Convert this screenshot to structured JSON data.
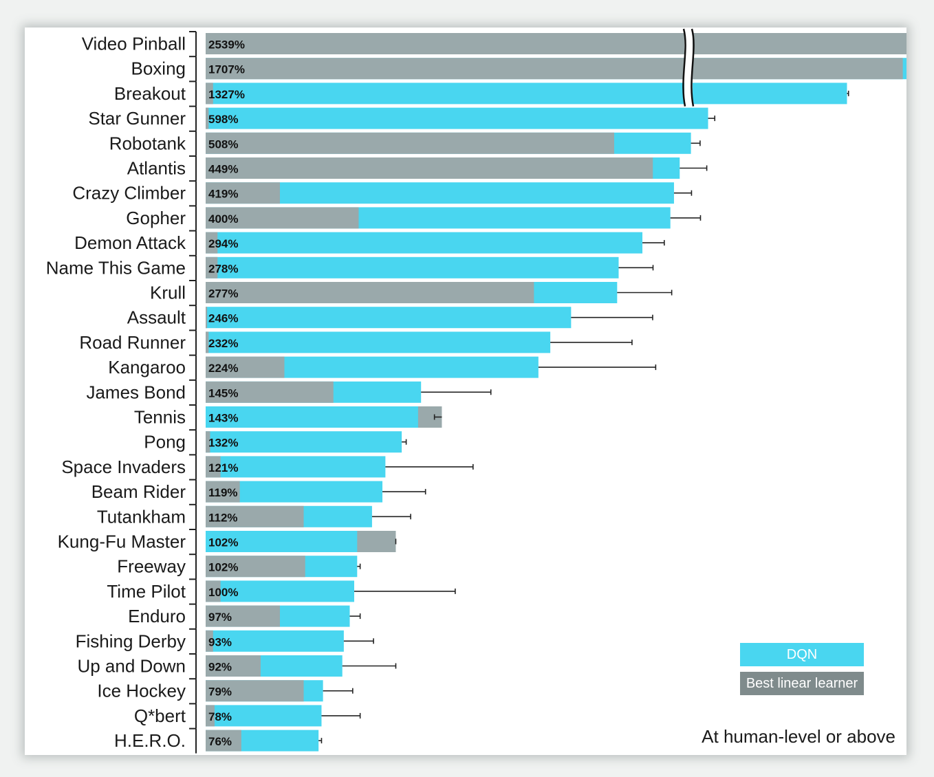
{
  "chart_data": {
    "type": "bar",
    "orientation": "horizontal",
    "title": "",
    "caption": "At human-level or above",
    "axis_break": "between ~1000% and top values (Video Pinball, Boxing, Breakout bars are broken)",
    "series": [
      {
        "name": "DQN",
        "color": "#49d6f0"
      },
      {
        "name": "Best linear learner",
        "color": "#9aa9ab"
      }
    ],
    "categories": [
      {
        "name": "Video Pinball",
        "dqn_label": "2539%",
        "dqn": 2539,
        "linear": 1650,
        "err": 2860
      },
      {
        "name": "Boxing",
        "dqn_label": "1707%",
        "dqn": 1707,
        "linear": 1620,
        "err": 1720
      },
      {
        "name": "Breakout",
        "dqn_label": "1327%",
        "dqn": 1327,
        "linear": 5,
        "err": 1335
      },
      {
        "name": "Star Gunner",
        "dqn_label": "598%",
        "dqn": 598,
        "linear": 2,
        "err": 633
      },
      {
        "name": "Robotank",
        "dqn_label": "508%",
        "dqn": 508,
        "linear": 275,
        "err": 556
      },
      {
        "name": "Atlantis",
        "dqn_label": "449%",
        "dqn": 449,
        "linear": 308,
        "err": 591
      },
      {
        "name": "Crazy Climber",
        "dqn_label": "419%",
        "dqn": 419,
        "linear": 50,
        "err": 511
      },
      {
        "name": "Gopher",
        "dqn_label": "400%",
        "dqn": 400,
        "linear": 103,
        "err": 558
      },
      {
        "name": "Demon Attack",
        "dqn_label": "294%",
        "dqn": 294,
        "linear": 8,
        "err": 368
      },
      {
        "name": "Name This Game",
        "dqn_label": "278%",
        "dqn": 278,
        "linear": 8,
        "err": 309
      },
      {
        "name": "Krull",
        "dqn_label": "277%",
        "dqn": 277,
        "linear": 221,
        "err": 407
      },
      {
        "name": "Assault",
        "dqn_label": "246%",
        "dqn": 246,
        "linear": 1,
        "err": 307
      },
      {
        "name": "Road Runner",
        "dqn_label": "232%",
        "dqn": 232,
        "linear": 2,
        "err": 287
      },
      {
        "name": "Kangaroo",
        "dqn_label": "224%",
        "dqn": 224,
        "linear": 53,
        "err": 323
      },
      {
        "name": "James Bond",
        "dqn_label": "145%",
        "dqn": 145,
        "linear": 86,
        "err": 192
      },
      {
        "name": "Tennis",
        "dqn_label": "143%",
        "dqn": 143,
        "linear": 159,
        "err": 154
      },
      {
        "name": "Pong",
        "dqn_label": "132%",
        "dqn": 132,
        "linear": 3,
        "err": 135
      },
      {
        "name": "Space Invaders",
        "dqn_label": "121%",
        "dqn": 121,
        "linear": 10,
        "err": 180
      },
      {
        "name": "Beam Rider",
        "dqn_label": "119%",
        "dqn": 119,
        "linear": 23,
        "err": 148
      },
      {
        "name": "Tutankham",
        "dqn_label": "112%",
        "dqn": 112,
        "linear": 66,
        "err": 138
      },
      {
        "name": "Kung-Fu Master",
        "dqn_label": "102%",
        "dqn": 102,
        "linear": 128,
        "err": 128
      },
      {
        "name": "Freeway",
        "dqn_label": "102%",
        "dqn": 102,
        "linear": 67,
        "err": 104
      },
      {
        "name": "Time Pilot",
        "dqn_label": "100%",
        "dqn": 100,
        "linear": 10,
        "err": 168
      },
      {
        "name": "Enduro",
        "dqn_label": "97%",
        "dqn": 97,
        "linear": 50,
        "err": 104
      },
      {
        "name": "Fishing Derby",
        "dqn_label": "93%",
        "dqn": 93,
        "linear": 5,
        "err": 113
      },
      {
        "name": "Up and Down",
        "dqn_label": "92%",
        "dqn": 92,
        "linear": 37,
        "err": 128
      },
      {
        "name": "Ice Hockey",
        "dqn_label": "79%",
        "dqn": 79,
        "linear": 66,
        "err": 99
      },
      {
        "name": "Q*bert",
        "dqn_label": "78%",
        "dqn": 78,
        "linear": 6,
        "err": 104
      },
      {
        "name": "H.E.R.O.",
        "dqn_label": "76%",
        "dqn": 76,
        "linear": 24,
        "err": 78
      }
    ]
  }
}
